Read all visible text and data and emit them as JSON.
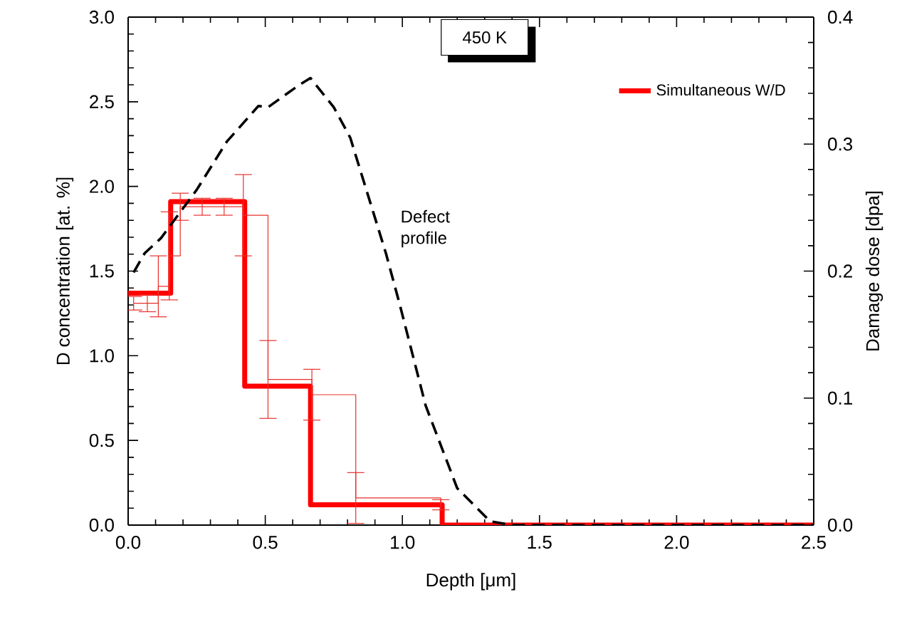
{
  "chart_data": {
    "type": "step",
    "xlabel": "Depth [μm]",
    "ylabel": "D concentration [at. %]",
    "y2label": "Damage dose [dpa]",
    "xlim": [
      0,
      2.5
    ],
    "xticks": [
      {
        "value": 0,
        "label": "0.0"
      },
      0.5,
      {
        "value": 1,
        "label": "1.0"
      },
      1.5,
      {
        "value": 2,
        "label": "2.0"
      },
      2.5
    ],
    "ylim": [
      0,
      3
    ],
    "yticks": [
      {
        "value": 0,
        "label": "0.0"
      },
      0.5,
      {
        "value": 1,
        "label": "1.0"
      },
      1.5,
      {
        "value": 2,
        "label": "2.0"
      },
      2.5,
      {
        "value": 3,
        "label": "3.0"
      }
    ],
    "y2lim": [
      0,
      0.4
    ],
    "y2ticks": [
      {
        "value": 0,
        "label": "0.0"
      },
      0.1,
      0.2,
      0.3,
      0.4
    ],
    "legend": "top right",
    "grid": false,
    "annotations": [
      "450 K",
      "Defect profile"
    ],
    "series": [
      {
        "name": "Simultaneous W/D",
        "color": "#ff0000",
        "x": [
          0,
          0.155,
          0.425,
          0.665,
          1.145,
          2.5
        ],
        "values": [
          1.37,
          1.91,
          0.82,
          0.12,
          0.0,
          0.0
        ]
      },
      {
        "color": "#e8302c",
        "x": [
          0.02,
          0.07,
          0.11,
          0.15,
          0.19,
          0.27,
          0.35,
          0.42,
          0.51,
          0.67,
          0.83,
          1.14
        ],
        "values": [
          1.31,
          1.31,
          1.41,
          1.59,
          1.88,
          1.88,
          1.88,
          1.83,
          0.86,
          0.77,
          0.16,
          0.12
        ],
        "errors": [
          0.04,
          0.05,
          0.18,
          0.26,
          0.08,
          0.05,
          0.05,
          0.24,
          0.23,
          0.15,
          0.15,
          0.03
        ]
      },
      {
        "type": "line",
        "axis": "y2",
        "color": "#000000",
        "line_style": "dashed",
        "x": [
          0.02,
          0.06,
          0.12,
          0.25,
          0.36,
          0.475,
          0.51,
          0.62,
          0.665,
          0.75,
          0.81,
          0.94,
          0.99,
          1.085,
          1.2,
          1.32,
          1.4,
          2.5
        ],
        "values": [
          0.199,
          0.214,
          0.226,
          0.264,
          0.302,
          0.33,
          0.329,
          0.346,
          0.352,
          0.329,
          0.305,
          0.214,
          0.174,
          0.094,
          0.029,
          0.003,
          0.0,
          0.0
        ]
      }
    ]
  }
}
